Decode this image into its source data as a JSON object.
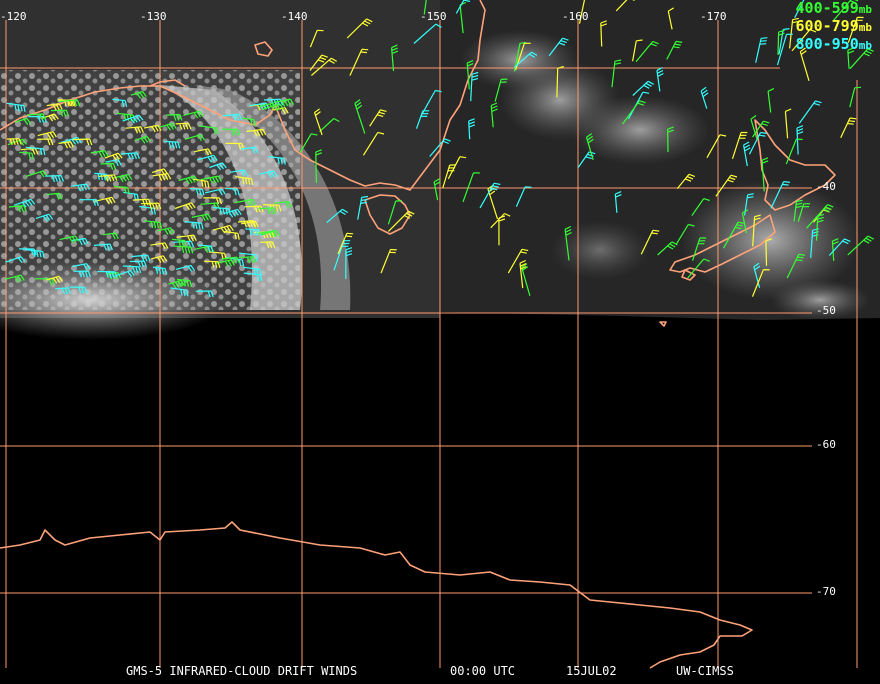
{
  "map": {
    "longitude_labels": [
      "-120",
      "-130",
      "-140",
      "-150",
      "-160",
      "-170"
    ],
    "latitude_labels": [
      "-40",
      "-50",
      "-60",
      "-70"
    ],
    "legend": [
      {
        "label": "400-599",
        "unit": "mb",
        "color": "#33ff33"
      },
      {
        "label": "600-799",
        "unit": "mb",
        "color": "#ffff33"
      },
      {
        "label": "800-950",
        "unit": "mb",
        "color": "#33ffff"
      }
    ],
    "footer": {
      "product": "GMS-5 INFRARED-CLOUD DRIFT WINDS",
      "time": "00:00 UTC",
      "date": "15JUL02",
      "source": "UW-CIMSS"
    },
    "colors": {
      "gridlines": "#ff9b6e",
      "coastline": "#ffa27a",
      "background": "#000000"
    }
  }
}
